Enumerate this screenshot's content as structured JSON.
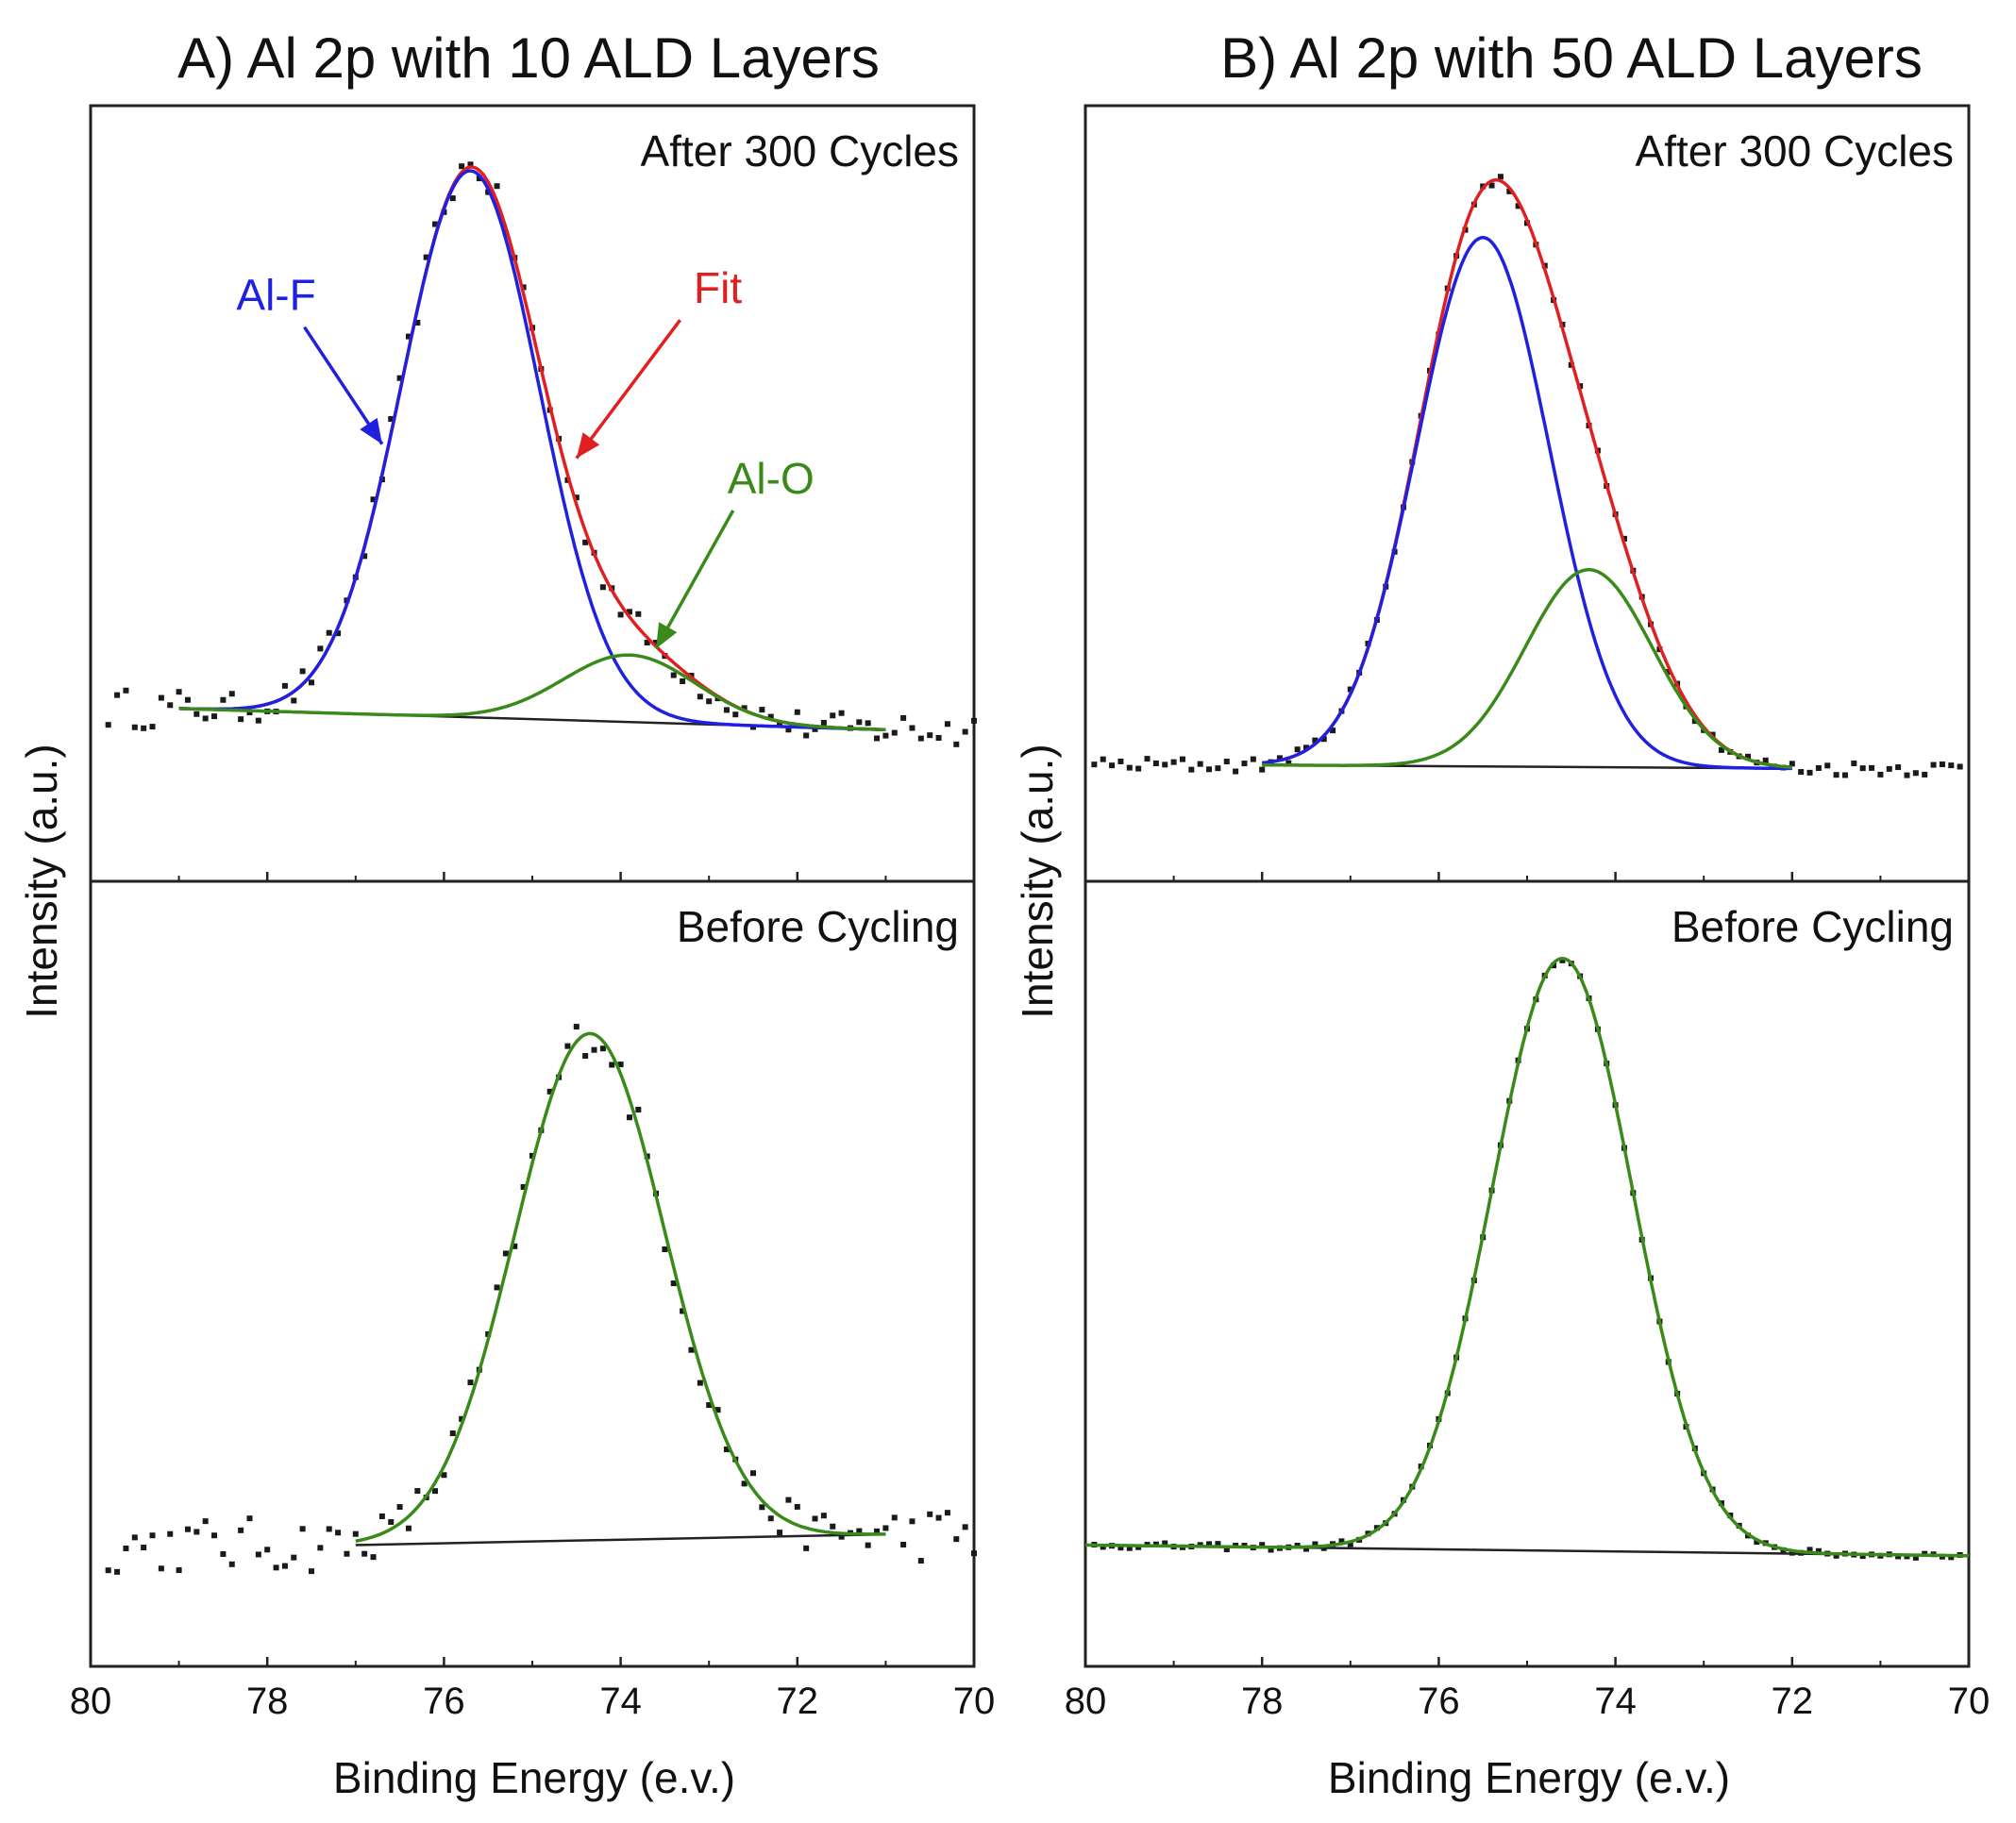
{
  "figure": {
    "panels": [
      "A",
      "B"
    ]
  },
  "chart_data": [
    {
      "id": "A",
      "type": "line",
      "title": "A) Al 2p with 10 ALD Layers",
      "xlabel": "Binding Energy (e.v.)",
      "ylabel": "Intensity (a.u.)",
      "xlim": [
        80,
        70
      ],
      "xticks": [
        80,
        78,
        76,
        74,
        72,
        70
      ],
      "grid": false,
      "subplots": [
        {
          "label": "After 300 Cycles",
          "ylim": [
            0,
            1.1
          ],
          "baseline": {
            "x_start": 79.0,
            "y_start": 0.245,
            "x_end": 71.0,
            "y_end": 0.215
          },
          "peaks": [
            {
              "name": "Al-F",
              "center": 75.7,
              "sigma": 0.78,
              "height": 0.775,
              "color": "#2020e0"
            },
            {
              "name": "Al-O",
              "center": 73.9,
              "sigma": 0.75,
              "height": 0.095,
              "color": "#3a8a1a"
            }
          ],
          "fit": {
            "name": "Fit",
            "color": "#e02020"
          },
          "data_range": [
            79.8,
            70.0
          ],
          "noise": 0.022,
          "annotations": [
            {
              "text": "Al-F",
              "color": "#2020e0",
              "text_x": 77.9,
              "text_y": 0.81,
              "arrow_x": 76.7,
              "arrow_y": 0.62
            },
            {
              "text": "Fit",
              "color": "#e02020",
              "text_x": 72.9,
              "text_y": 0.82,
              "arrow_x": 74.5,
              "arrow_y": 0.6
            },
            {
              "text": "Al-O",
              "color": "#3a8a1a",
              "text_x": 72.3,
              "text_y": 0.55,
              "arrow_x": 73.6,
              "arrow_y": 0.33
            }
          ]
        },
        {
          "label": "Before Cycling",
          "ylim": [
            0,
            1.1
          ],
          "baseline": {
            "x_start": 77.0,
            "y_start": 0.17,
            "x_end": 71.0,
            "y_end": 0.185
          },
          "peaks": [
            {
              "name": "Al-O",
              "center": 74.35,
              "sigma": 0.85,
              "height": 0.71,
              "color": "#3a8a1a"
            }
          ],
          "data_range": [
            79.8,
            70.0
          ],
          "noise": 0.03
        }
      ]
    },
    {
      "id": "B",
      "type": "line",
      "title": "B) Al 2p with 50 ALD Layers",
      "xlabel": "Binding Energy (e.v.)",
      "ylabel": "Intensity (a.u.)",
      "xlim": [
        80,
        70
      ],
      "xticks": [
        80,
        78,
        76,
        74,
        72,
        70
      ],
      "grid": false,
      "subplots": [
        {
          "label": "After 300 Cycles",
          "ylim": [
            0,
            1.1
          ],
          "baseline": {
            "x_start": 78.0,
            "y_start": 0.165,
            "x_end": 72.0,
            "y_end": 0.16
          },
          "peaks": [
            {
              "name": "Al-F",
              "center": 75.5,
              "sigma": 0.75,
              "height": 0.75,
              "color": "#2020e0"
            },
            {
              "name": "Al-O",
              "center": 74.3,
              "sigma": 0.72,
              "height": 0.28,
              "color": "#3a8a1a"
            }
          ],
          "fit": {
            "name": "Fit",
            "color": "#e02020"
          },
          "data_range": [
            79.9,
            70.1
          ],
          "noise": 0.008
        },
        {
          "label": "Before Cycling",
          "ylim": [
            0,
            1.1
          ],
          "baseline": {
            "x_start": 80.0,
            "y_start": 0.17,
            "x_end": 70.0,
            "y_end": 0.155
          },
          "peaks": [
            {
              "name": "Al-O",
              "center": 74.6,
              "sigma": 0.8,
              "height": 0.83,
              "color": "#3a8a1a"
            }
          ],
          "data_range": [
            79.9,
            70.1
          ],
          "noise": 0.004
        }
      ]
    }
  ]
}
